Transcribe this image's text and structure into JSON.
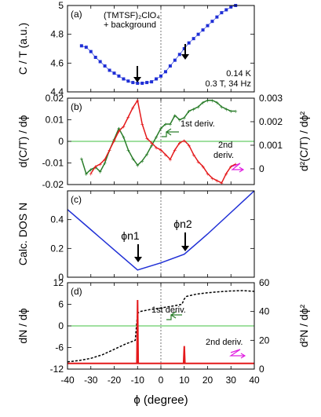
{
  "colors": {
    "blue": "#1f2fd6",
    "red": "#e41a1c",
    "green": "#2a7d2a",
    "magenta": "#e020e0",
    "zero": "#40c040",
    "dash": "#555555"
  },
  "x_axis": {
    "label": "ϕ (degree)",
    "ticks": [
      "-40",
      "-30",
      "-20",
      "-10",
      "0",
      "10",
      "20",
      "30",
      "40"
    ],
    "xlim": [
      -40,
      40
    ]
  },
  "chart_data": [
    {
      "type": "scatter",
      "panel": "(a)",
      "ylabel": "C / T (a.u.)",
      "ylim": [
        4.4,
        5.0
      ],
      "yticks": [
        "4.4",
        "4.6",
        "4.8",
        "5"
      ],
      "annotations": [
        "(TMTSF)₂ClO₄",
        "+ background",
        "0.14 K",
        "0.3 T, 34 Hz"
      ],
      "series": [
        {
          "color": "blue",
          "x": [
            -34,
            -32,
            -30,
            -28,
            -26,
            -24,
            -22,
            -20,
            -18,
            -16,
            -14,
            -12,
            -10,
            -8,
            -6,
            -4,
            -2,
            0,
            2,
            4,
            6,
            8,
            10,
            12,
            14,
            16,
            18,
            20,
            22,
            24,
            26,
            28,
            30,
            32
          ],
          "y": [
            4.72,
            4.71,
            4.68,
            4.64,
            4.61,
            4.58,
            4.55,
            4.53,
            4.51,
            4.49,
            4.475,
            4.465,
            4.46,
            4.46,
            4.465,
            4.47,
            4.49,
            4.51,
            4.54,
            4.58,
            4.62,
            4.66,
            4.7,
            4.74,
            4.77,
            4.8,
            4.83,
            4.86,
            4.89,
            4.92,
            4.95,
            4.97,
            4.99,
            5.0
          ]
        }
      ]
    },
    {
      "type": "line",
      "panel": "(b)",
      "ylabel": "d(C/T) / dϕ",
      "ylabel_right": "d²(C/T) / dϕ²",
      "ylim": [
        -0.02,
        0.02
      ],
      "yticks": [
        "-0.02",
        "-0.01",
        "0",
        "0.01",
        "0.02"
      ],
      "ylim_right": [
        -0.00067,
        0.003
      ],
      "yticks_right": [
        "0",
        "0.001",
        "0.002",
        "0.003"
      ],
      "annotations": [
        "1st deriv.",
        "2nd",
        "deriv."
      ],
      "series": [
        {
          "name": "1st deriv.",
          "color": "green",
          "axis": "left",
          "x": [
            -34,
            -32,
            -30,
            -28,
            -26,
            -24,
            -22,
            -20,
            -18,
            -16,
            -14,
            -12,
            -10,
            -8,
            -6,
            -4,
            -2,
            0,
            2,
            4,
            6,
            8,
            10,
            12,
            14,
            16,
            18,
            20,
            22,
            24,
            26,
            28,
            30,
            32
          ],
          "y": [
            -0.008,
            -0.015,
            -0.013,
            -0.012,
            -0.014,
            -0.01,
            -0.004,
            0.001,
            0.006,
            0.002,
            -0.004,
            -0.008,
            -0.011,
            -0.009,
            -0.006,
            -0.002,
            0.002,
            0.006,
            0.008,
            0.008,
            0.012,
            0.01,
            0.011,
            0.014,
            0.015,
            0.016,
            0.018,
            0.019,
            0.019,
            0.018,
            0.016,
            0.015,
            0.014,
            0.014
          ]
        },
        {
          "name": "2nd deriv.",
          "color": "red",
          "axis": "right",
          "x": [
            -30,
            -28,
            -26,
            -24,
            -22,
            -20,
            -18,
            -16,
            -14,
            -12,
            -10,
            -8,
            -6,
            -4,
            -2,
            0,
            2,
            4,
            6,
            8,
            10,
            12,
            14,
            16,
            18,
            20,
            22,
            24,
            26,
            28,
            30,
            32
          ],
          "y": [
            -0.0002,
            0.0001,
            0.0002,
            0.0004,
            0.0008,
            0.0012,
            0.0016,
            0.0018,
            0.0022,
            0.0026,
            0.0029,
            0.0019,
            0.0013,
            0.0011,
            0.0009,
            0.0008,
            0.0006,
            0.0004,
            0.0008,
            0.0011,
            0.0012,
            0.001,
            0.0006,
            0.0003,
            0.0001,
            -0.0002,
            -0.0004,
            -0.0005,
            -0.0006,
            -0.0002,
            0.0001,
            0.0002
          ]
        }
      ]
    },
    {
      "type": "line",
      "panel": "(c)",
      "ylabel": "Calc. DOS N",
      "ylim": [
        0,
        0.6
      ],
      "yticks": [
        "0",
        "0.2",
        "0.4"
      ],
      "annotations": [
        "ϕn1",
        "ϕn2"
      ],
      "series": [
        {
          "color": "blue",
          "x": [
            -40,
            -30,
            -20,
            -10,
            0,
            10,
            20,
            30,
            40
          ],
          "y": [
            0.47,
            0.33,
            0.19,
            0.05,
            0.1,
            0.16,
            0.3,
            0.45,
            0.6
          ]
        }
      ]
    },
    {
      "type": "line",
      "panel": "(d)",
      "ylabel": "dN / dϕ",
      "ylabel_right": "d²N / dϕ²",
      "ylim": [
        -12,
        12
      ],
      "yticks": [
        "-12",
        "-6",
        "0",
        "6",
        "12"
      ],
      "ylim_right": [
        0,
        60
      ],
      "yticks_right": [
        "0",
        "20",
        "40",
        "60"
      ],
      "annotations": [
        "1st deriv.",
        "2nd deriv."
      ],
      "series": [
        {
          "name": "1st deriv.",
          "color": "black",
          "style": "dashed",
          "axis": "left",
          "x": [
            -40,
            -35,
            -30,
            -25,
            -20,
            -15,
            -11,
            -10,
            -9,
            -5,
            0,
            5,
            9,
            10,
            11,
            15,
            20,
            25,
            30,
            35,
            40
          ],
          "y": [
            -10,
            -9.6,
            -9,
            -8,
            -6.5,
            -5,
            -4,
            3.5,
            4,
            4.5,
            5,
            5.5,
            6,
            7.5,
            8.2,
            8.8,
            9.2,
            9.5,
            9.7,
            9.8,
            9.6
          ]
        },
        {
          "name": "2nd deriv.",
          "color": "red",
          "axis": "right",
          "x": [
            -40,
            -10.3,
            -10,
            -9.7,
            9.7,
            10,
            10.3,
            40
          ],
          "y": [
            4,
            4,
            48,
            4,
            4,
            16,
            4,
            4
          ]
        }
      ]
    }
  ]
}
